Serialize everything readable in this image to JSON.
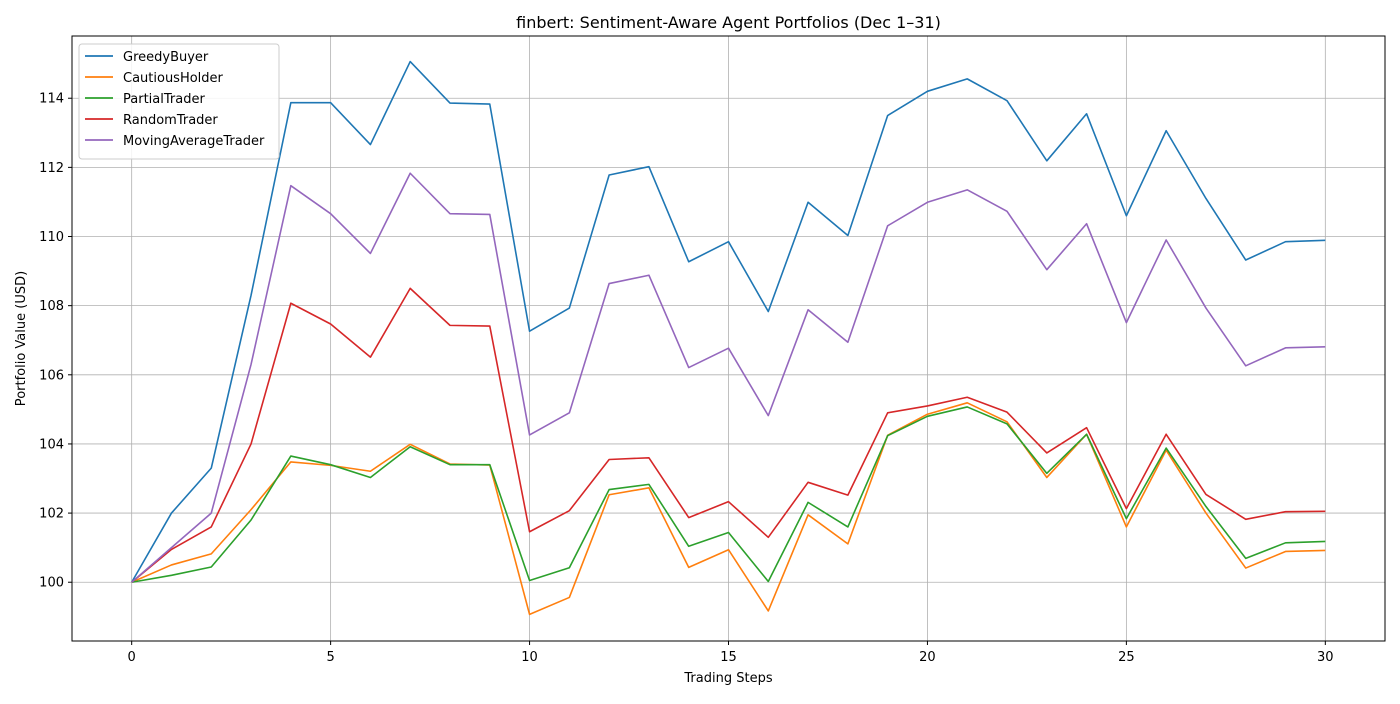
{
  "chart_data": {
    "type": "line",
    "title": "finbert: Sentiment-Aware Agent Portfolios (Dec 1–31)",
    "xlabel": "Trading Steps",
    "ylabel": "Portfolio Value (USD)",
    "xlim": [
      -1.5,
      31.5
    ],
    "ylim": [
      98.3,
      115.8
    ],
    "xticks": [
      0,
      5,
      10,
      15,
      20,
      25,
      30
    ],
    "yticks": [
      100,
      102,
      104,
      106,
      108,
      110,
      112,
      114
    ],
    "grid": true,
    "legend_position": "top-left",
    "x": [
      0,
      1,
      2,
      3,
      4,
      5,
      6,
      7,
      8,
      9,
      10,
      11,
      12,
      13,
      14,
      15,
      16,
      17,
      18,
      19,
      20,
      21,
      22,
      23,
      24,
      25,
      26,
      27,
      28,
      29,
      30
    ],
    "series": [
      {
        "name": "GreedyBuyer",
        "color": "#1f77b4",
        "values": [
          100.0,
          102.0,
          103.3,
          108.3,
          113.87,
          113.87,
          112.66,
          115.06,
          113.86,
          113.83,
          107.26,
          107.93,
          111.78,
          112.02,
          109.27,
          109.85,
          107.83,
          110.99,
          110.03,
          113.5,
          114.2,
          114.56,
          113.93,
          112.19,
          113.55,
          110.6,
          113.06,
          111.1,
          109.32,
          109.85,
          109.89
        ]
      },
      {
        "name": "CautiousHolder",
        "color": "#ff7f0e",
        "values": [
          100.0,
          100.5,
          100.82,
          102.1,
          103.48,
          103.38,
          103.21,
          103.99,
          103.42,
          103.39,
          99.07,
          99.56,
          102.53,
          102.73,
          100.43,
          100.94,
          99.17,
          101.95,
          101.11,
          104.25,
          104.86,
          105.19,
          104.64,
          103.03,
          104.28,
          101.6,
          103.82,
          102.0,
          100.41,
          100.89,
          100.92
        ]
      },
      {
        "name": "PartialTrader",
        "color": "#2ca02c",
        "values": [
          100.0,
          100.2,
          100.44,
          101.8,
          103.65,
          103.4,
          103.03,
          103.92,
          103.4,
          103.4,
          100.05,
          100.42,
          102.68,
          102.83,
          101.04,
          101.44,
          100.02,
          102.31,
          101.6,
          104.24,
          104.8,
          105.07,
          104.58,
          103.15,
          104.28,
          101.84,
          103.88,
          102.19,
          100.69,
          101.14,
          101.18
        ]
      },
      {
        "name": "RandomTrader",
        "color": "#d62728",
        "values": [
          100.0,
          100.95,
          101.6,
          104.0,
          108.07,
          107.47,
          106.51,
          108.5,
          107.43,
          107.41,
          101.46,
          102.07,
          103.55,
          103.6,
          101.87,
          102.33,
          101.3,
          102.89,
          102.52,
          104.9,
          105.1,
          105.35,
          104.92,
          103.74,
          104.47,
          102.13,
          104.28,
          102.54,
          101.82,
          102.04,
          102.05
        ]
      },
      {
        "name": "MovingAverageTrader",
        "color": "#9467bd",
        "values": [
          100.0,
          101.0,
          102.0,
          106.3,
          111.47,
          110.66,
          109.51,
          111.83,
          110.66,
          110.64,
          104.26,
          104.9,
          108.64,
          108.88,
          106.21,
          106.77,
          104.82,
          107.88,
          106.94,
          110.31,
          110.99,
          111.35,
          110.73,
          109.04,
          110.37,
          107.51,
          109.9,
          107.93,
          106.26,
          106.78,
          106.81
        ]
      }
    ]
  }
}
